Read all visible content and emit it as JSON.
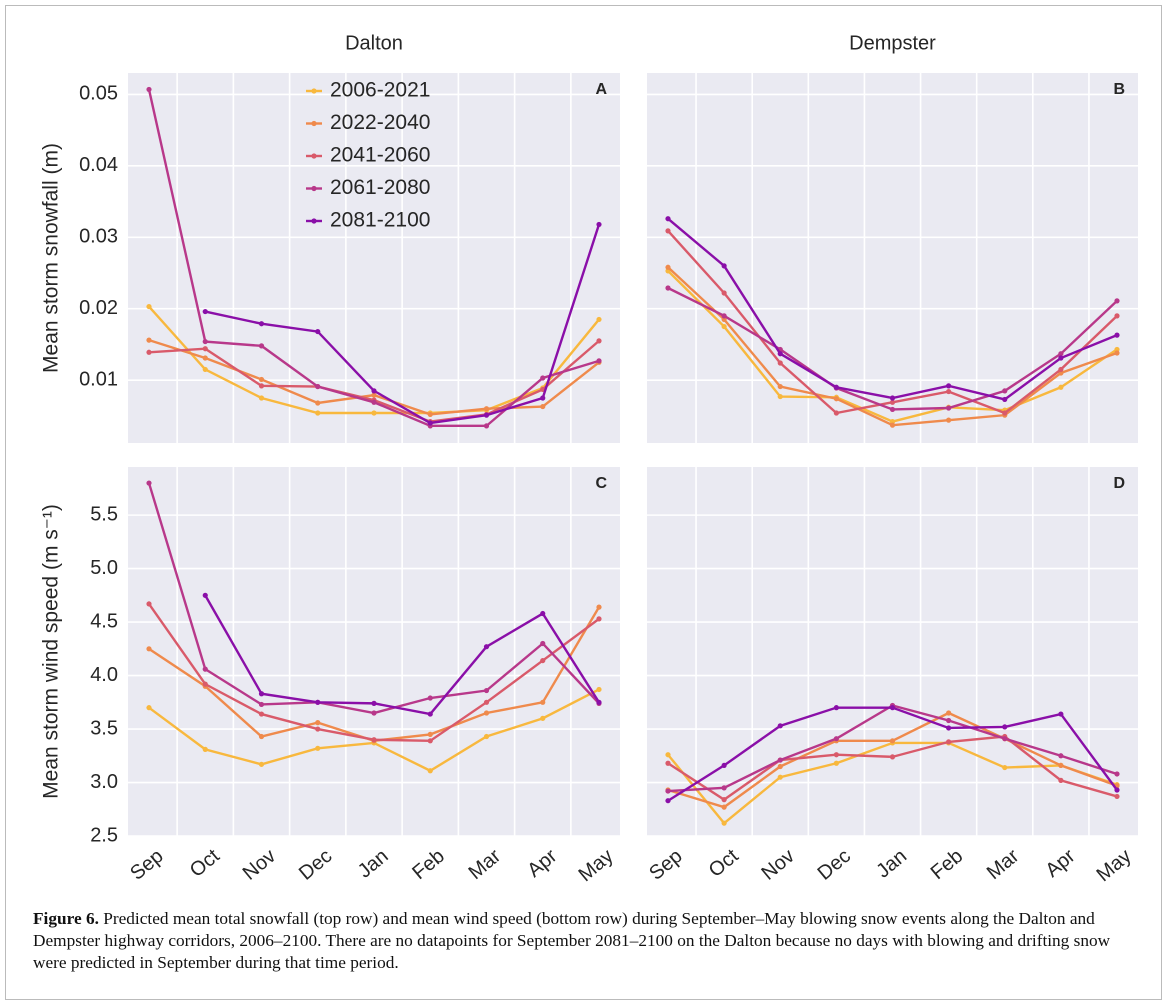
{
  "chart_data": [
    {
      "type": "line",
      "title": "Dalton",
      "panel": "A",
      "ylabel": "Mean storm snowfall (m)",
      "legend": "upper center",
      "ylim": [
        0.0012,
        0.053
      ],
      "yticks": [
        0.01,
        0.02,
        0.03,
        0.04,
        0.05
      ],
      "grid": true,
      "series": [
        {
          "name": "2006-2021",
          "color": "#f8b83e",
          "values": [
            0.0203,
            0.0115,
            0.0075,
            0.0054,
            0.0054,
            0.0054,
            0.0058,
            0.0089,
            0.0185
          ]
        },
        {
          "name": "2022-2040",
          "color": "#ef8a4c",
          "values": [
            0.0156,
            0.0131,
            0.0101,
            0.0068,
            0.0079,
            0.0052,
            0.006,
            0.0063,
            0.0125
          ]
        },
        {
          "name": "2041-2060",
          "color": "#d95a6a",
          "values": [
            0.0139,
            0.0144,
            0.0092,
            0.0091,
            0.0072,
            0.0042,
            0.0052,
            0.0087,
            0.0155
          ]
        },
        {
          "name": "2061-2080",
          "color": "#b8388a",
          "values": [
            0.0507,
            0.0154,
            0.0148,
            0.0091,
            0.0069,
            0.0036,
            0.0036,
            0.0103,
            0.0127
          ]
        },
        {
          "name": "2081-2100",
          "color": "#8a0fa8",
          "values": [
            null,
            0.0196,
            0.0179,
            0.0168,
            0.0085,
            0.004,
            0.0051,
            0.0075,
            0.0318
          ]
        }
      ]
    },
    {
      "type": "line",
      "title": "Dempster",
      "panel": "B",
      "ylim": [
        0.0012,
        0.053
      ],
      "yticks": [
        0.01,
        0.02,
        0.03,
        0.04,
        0.05
      ],
      "grid": true,
      "series": [
        {
          "color": "#f8b83e",
          "values": [
            0.0253,
            0.0175,
            0.0077,
            0.0076,
            0.0042,
            0.0062,
            0.0058,
            0.009,
            0.0143
          ]
        },
        {
          "color": "#ef8a4c",
          "values": [
            0.0258,
            0.0185,
            0.0091,
            0.0074,
            0.0037,
            0.0044,
            0.0051,
            0.011,
            0.0138
          ]
        },
        {
          "color": "#d95a6a",
          "values": [
            0.0309,
            0.0222,
            0.0124,
            0.0054,
            0.0069,
            0.0084,
            0.0054,
            0.0115,
            0.019
          ]
        },
        {
          "color": "#b8388a",
          "values": [
            0.0229,
            0.019,
            0.0143,
            0.0089,
            0.0059,
            0.0061,
            0.0085,
            0.0137,
            0.0211
          ]
        },
        {
          "color": "#8a0fa8",
          "values": [
            0.0326,
            0.026,
            0.0137,
            0.009,
            0.0075,
            0.0092,
            0.0073,
            0.0131,
            0.0163
          ]
        }
      ]
    },
    {
      "type": "line",
      "panel": "C",
      "ylabel": "Mean storm wind speed (m s⁻¹)",
      "categories": [
        "Sep",
        "Oct",
        "Nov",
        "Dec",
        "Jan",
        "Feb",
        "Mar",
        "Apr",
        "May"
      ],
      "ylim": [
        2.5,
        5.95
      ],
      "yticks": [
        2.5,
        {
          "value": 3,
          "label": "3.0"
        },
        3.5,
        {
          "value": 4,
          "label": "4.0"
        },
        4.5,
        {
          "value": 5,
          "label": "5.0"
        },
        5.5
      ],
      "grid": true,
      "series": [
        {
          "color": "#f8b83e",
          "values": [
            3.7,
            3.31,
            3.17,
            3.32,
            3.37,
            3.11,
            3.43,
            3.6,
            3.87
          ]
        },
        {
          "color": "#ef8a4c",
          "values": [
            4.25,
            3.9,
            3.43,
            3.56,
            3.39,
            3.45,
            3.65,
            3.75,
            4.64
          ]
        },
        {
          "color": "#d95a6a",
          "values": [
            4.67,
            3.92,
            3.64,
            3.5,
            3.4,
            3.39,
            3.75,
            4.14,
            4.53
          ]
        },
        {
          "color": "#b8388a",
          "values": [
            5.8,
            4.06,
            3.73,
            3.75,
            3.65,
            3.79,
            3.86,
            4.3,
            3.74
          ]
        },
        {
          "color": "#8a0fa8",
          "values": [
            null,
            4.75,
            3.83,
            3.75,
            3.74,
            3.64,
            4.27,
            4.58,
            3.75
          ]
        }
      ]
    },
    {
      "type": "line",
      "panel": "D",
      "categories": [
        "Sep",
        "Oct",
        "Nov",
        "Dec",
        "Jan",
        "Feb",
        "Mar",
        "Apr",
        "May"
      ],
      "ylim": [
        2.5,
        5.95
      ],
      "yticks": [
        2.5,
        3,
        3.5,
        4,
        4.5,
        5,
        5.5
      ],
      "grid": true,
      "series": [
        {
          "color": "#f8b83e",
          "values": [
            3.26,
            2.62,
            3.05,
            3.18,
            3.37,
            3.37,
            3.14,
            3.16,
            2.98
          ]
        },
        {
          "color": "#ef8a4c",
          "values": [
            2.93,
            2.77,
            3.15,
            3.39,
            3.39,
            3.65,
            3.41,
            3.16,
            2.97
          ]
        },
        {
          "color": "#d95a6a",
          "values": [
            3.18,
            2.84,
            3.21,
            3.26,
            3.24,
            3.38,
            3.43,
            3.02,
            2.87
          ]
        },
        {
          "color": "#b8388a",
          "values": [
            2.92,
            2.95,
            3.21,
            3.41,
            3.72,
            3.58,
            3.41,
            3.25,
            3.08
          ]
        },
        {
          "color": "#8a0fa8",
          "values": [
            2.83,
            3.16,
            3.53,
            3.7,
            3.7,
            3.51,
            3.52,
            3.64,
            2.93
          ]
        }
      ]
    }
  ],
  "caption": {
    "label": "Figure 6.",
    "text": "Predicted mean total snowfall (top row) and mean wind speed (bottom row) during September–May blowing snow events along the Dalton and Dempster highway corridors, 2006–2100. There are no datapoints for September 2081–2100 on the Dalton because no days with blowing and drifting snow were predicted in September during that time period."
  }
}
